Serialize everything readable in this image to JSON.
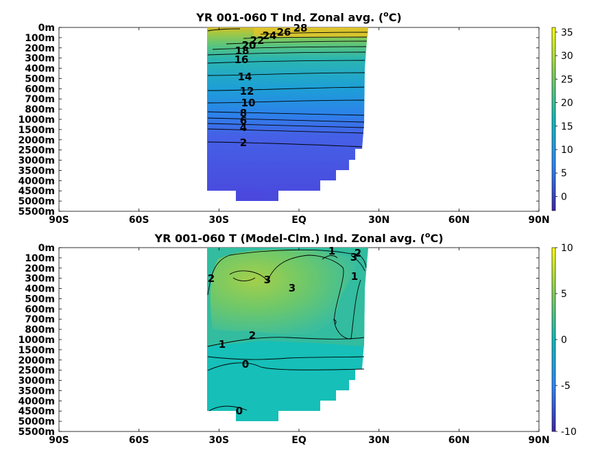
{
  "chart_data": [
    {
      "type": "heatmap",
      "title": "YR 001-060 T Ind. Zonal avg. (°C)",
      "title_main": "YR 001-060 T Ind. Zonal avg. (",
      "title_unit_sup": "o",
      "title_unit_tail": "C)",
      "x_ticks": [
        "90S",
        "60S",
        "30S",
        "EQ",
        "30N",
        "60N",
        "90N"
      ],
      "x_tick_values": [
        -90,
        -60,
        -30,
        0,
        30,
        60,
        90
      ],
      "y_ticks": [
        "0m",
        "100m",
        "200m",
        "300m",
        "400m",
        "500m",
        "600m",
        "700m",
        "800m",
        "1000m",
        "1500m",
        "2000m",
        "2500m",
        "3000m",
        "3500m",
        "4000m",
        "4500m",
        "5000m",
        "5500m"
      ],
      "data_lat_range": [
        -35,
        25
      ],
      "colorbar": {
        "min": -3,
        "max": 36,
        "ticks": [
          0,
          5,
          10,
          15,
          20,
          25,
          30,
          35
        ]
      },
      "contour_labels": [
        "28",
        "26",
        "24",
        "22",
        "20",
        "18",
        "16",
        "14",
        "12",
        "10",
        "8",
        "6",
        "4",
        "2"
      ],
      "profile": [
        {
          "depth": "0m",
          "value": 28
        },
        {
          "depth": "100m",
          "value": 24
        },
        {
          "depth": "200m",
          "value": 19
        },
        {
          "depth": "300m",
          "value": 16
        },
        {
          "depth": "500m",
          "value": 13
        },
        {
          "depth": "700m",
          "value": 10
        },
        {
          "depth": "1000m",
          "value": 7
        },
        {
          "depth": "1500m",
          "value": 4
        },
        {
          "depth": "2000m",
          "value": 2.5
        },
        {
          "depth": "3000m",
          "value": 1.5
        },
        {
          "depth": "4000m",
          "value": 1
        },
        {
          "depth": "5000m",
          "value": 0.8
        }
      ]
    },
    {
      "type": "heatmap",
      "title": "YR 001-060 T (Model-Clm.) Ind. Zonal avg. (°C)",
      "title_main": "YR 001-060 T (Model-Clm.) Ind. Zonal avg. (",
      "title_unit_sup": "o",
      "title_unit_tail": "C)",
      "x_ticks": [
        "90S",
        "60S",
        "30S",
        "EQ",
        "30N",
        "60N",
        "90N"
      ],
      "x_tick_values": [
        -90,
        -60,
        -30,
        0,
        30,
        60,
        90
      ],
      "y_ticks": [
        "0m",
        "100m",
        "200m",
        "300m",
        "400m",
        "500m",
        "600m",
        "700m",
        "800m",
        "1000m",
        "1500m",
        "2000m",
        "2500m",
        "3000m",
        "3500m",
        "4000m",
        "4500m",
        "5000m",
        "5500m"
      ],
      "data_lat_range": [
        -35,
        25
      ],
      "colorbar": {
        "min": -10,
        "max": 10,
        "ticks": [
          10,
          5,
          0,
          -5,
          -10
        ]
      },
      "contour_labels": [
        "1",
        "2",
        "3",
        "2",
        "3",
        "1",
        "3",
        "1",
        "2",
        "0",
        "0"
      ],
      "profile": [
        {
          "depth": "0m",
          "value": 1.5
        },
        {
          "depth": "300m",
          "value": 3
        },
        {
          "depth": "600m",
          "value": 3.5
        },
        {
          "depth": "1000m",
          "value": 2
        },
        {
          "depth": "2000m",
          "value": 0.5
        },
        {
          "depth": "4000m",
          "value": 0
        }
      ]
    }
  ]
}
